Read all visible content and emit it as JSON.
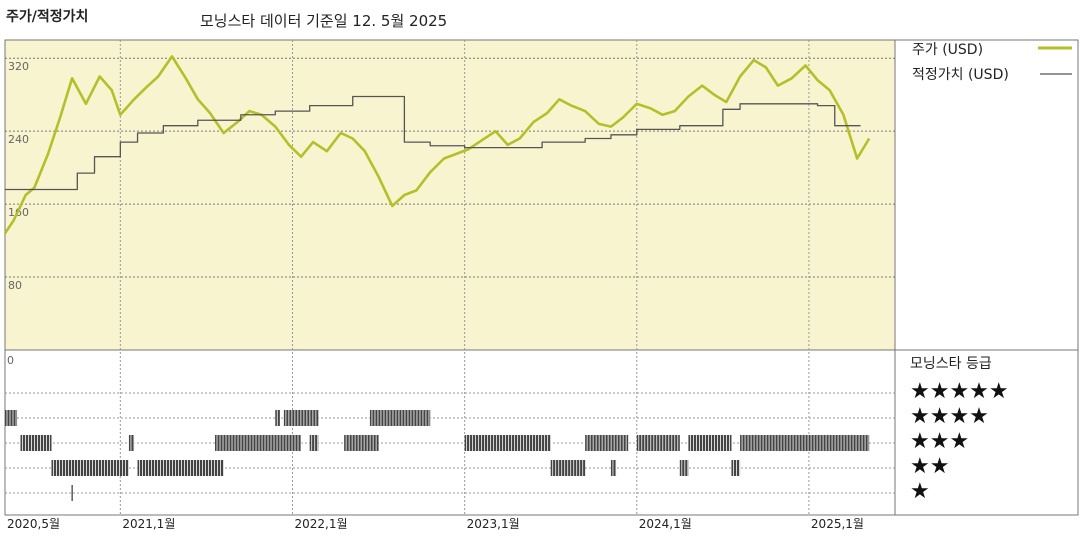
{
  "header": {
    "left_title": "주가/적정가치",
    "main_title": "모닝스타 데이터 기준일 12. 5월 2025"
  },
  "chart_data": [
    {
      "type": "line",
      "ylim": [
        0,
        340
      ],
      "y_ticks": [
        "320",
        "240",
        "160",
        "80"
      ],
      "y_tick_values": [
        320,
        240,
        160,
        80
      ],
      "x_ticks": [
        "2020,5월",
        "2021,1월",
        "2022,1월",
        "2023,1월",
        "2024,1월",
        "2025,1월"
      ],
      "x_tick_values": [
        2020.33,
        2021.0,
        2022.0,
        2023.0,
        2024.0,
        2025.0
      ],
      "xlim": [
        2020.33,
        2025.5
      ],
      "legend": {
        "placement": "right"
      },
      "series": [
        {
          "name": "주가 (USD)",
          "color": "#b5bf2a",
          "x": [
            2020.33,
            2020.38,
            2020.45,
            2020.5,
            2020.58,
            2020.65,
            2020.72,
            2020.8,
            2020.88,
            2020.95,
            2021.0,
            2021.08,
            2021.15,
            2021.22,
            2021.3,
            2021.38,
            2021.45,
            2021.52,
            2021.6,
            2021.68,
            2021.75,
            2021.82,
            2021.9,
            2021.98,
            2022.05,
            2022.12,
            2022.2,
            2022.28,
            2022.35,
            2022.42,
            2022.5,
            2022.58,
            2022.65,
            2022.72,
            2022.8,
            2022.88,
            2022.95,
            2023.02,
            2023.1,
            2023.18,
            2023.25,
            2023.32,
            2023.4,
            2023.48,
            2023.55,
            2023.62,
            2023.7,
            2023.78,
            2023.85,
            2023.92,
            2024.0,
            2024.08,
            2024.15,
            2024.22,
            2024.3,
            2024.38,
            2024.45,
            2024.52,
            2024.6,
            2024.68,
            2024.75,
            2024.82,
            2024.9,
            2024.98,
            2025.05,
            2025.12,
            2025.2,
            2025.28,
            2025.35
          ],
          "values": [
            128,
            142,
            170,
            178,
            215,
            255,
            298,
            270,
            300,
            285,
            258,
            275,
            288,
            300,
            322,
            298,
            275,
            260,
            238,
            250,
            262,
            258,
            245,
            225,
            212,
            228,
            218,
            238,
            232,
            218,
            190,
            158,
            170,
            175,
            195,
            210,
            215,
            220,
            230,
            240,
            225,
            232,
            250,
            260,
            275,
            268,
            262,
            248,
            245,
            255,
            270,
            265,
            258,
            262,
            278,
            290,
            280,
            272,
            300,
            318,
            310,
            290,
            298,
            312,
            296,
            285,
            258,
            210,
            232
          ]
        },
        {
          "name": "적정가치 (USD)",
          "color": "#555555",
          "x": [
            2020.33,
            2020.5,
            2020.55,
            2020.6,
            2020.7,
            2020.75,
            2020.85,
            2021.0,
            2021.1,
            2021.25,
            2021.45,
            2021.7,
            2021.9,
            2022.1,
            2022.35,
            2022.6,
            2022.65,
            2022.8,
            2023.0,
            2023.15,
            2023.45,
            2023.7,
            2023.85,
            2024.0,
            2024.25,
            2024.5,
            2024.6,
            2024.95,
            2025.05,
            2025.15,
            2025.3
          ],
          "values": [
            176,
            176,
            176,
            176,
            176,
            194,
            212,
            228,
            238,
            246,
            252,
            258,
            262,
            268,
            278,
            278,
            228,
            224,
            222,
            222,
            228,
            232,
            236,
            242,
            246,
            264,
            270,
            270,
            268,
            246,
            246
          ]
        }
      ]
    },
    {
      "type": "bar",
      "title": "모닝스타 등급",
      "categories": [
        "★★★★★",
        "★★★★",
        "★★★",
        "★★",
        "★"
      ],
      "y_tick": "0",
      "segments": {
        "5": [],
        "4": [
          [
            2020.33,
            2020.4
          ],
          [
            2021.9,
            2021.93
          ],
          [
            2021.95,
            2022.15
          ],
          [
            2022.45,
            2022.8
          ]
        ],
        "3": [
          [
            2020.42,
            2020.6
          ],
          [
            2021.05,
            2021.08
          ],
          [
            2021.55,
            2022.05
          ],
          [
            2022.1,
            2022.15
          ],
          [
            2022.3,
            2022.5
          ],
          [
            2023.0,
            2023.5
          ],
          [
            2023.7,
            2023.95
          ],
          [
            2024.0,
            2024.25
          ],
          [
            2024.3,
            2024.55
          ],
          [
            2024.6,
            2025.35
          ]
        ],
        "2": [
          [
            2020.6,
            2021.05
          ],
          [
            2021.1,
            2021.6
          ],
          [
            2023.5,
            2023.7
          ],
          [
            2023.85,
            2023.88
          ],
          [
            2024.25,
            2024.3
          ],
          [
            2024.55,
            2024.6
          ]
        ],
        "1": [
          [
            2020.72,
            2020.73
          ]
        ]
      }
    }
  ]
}
